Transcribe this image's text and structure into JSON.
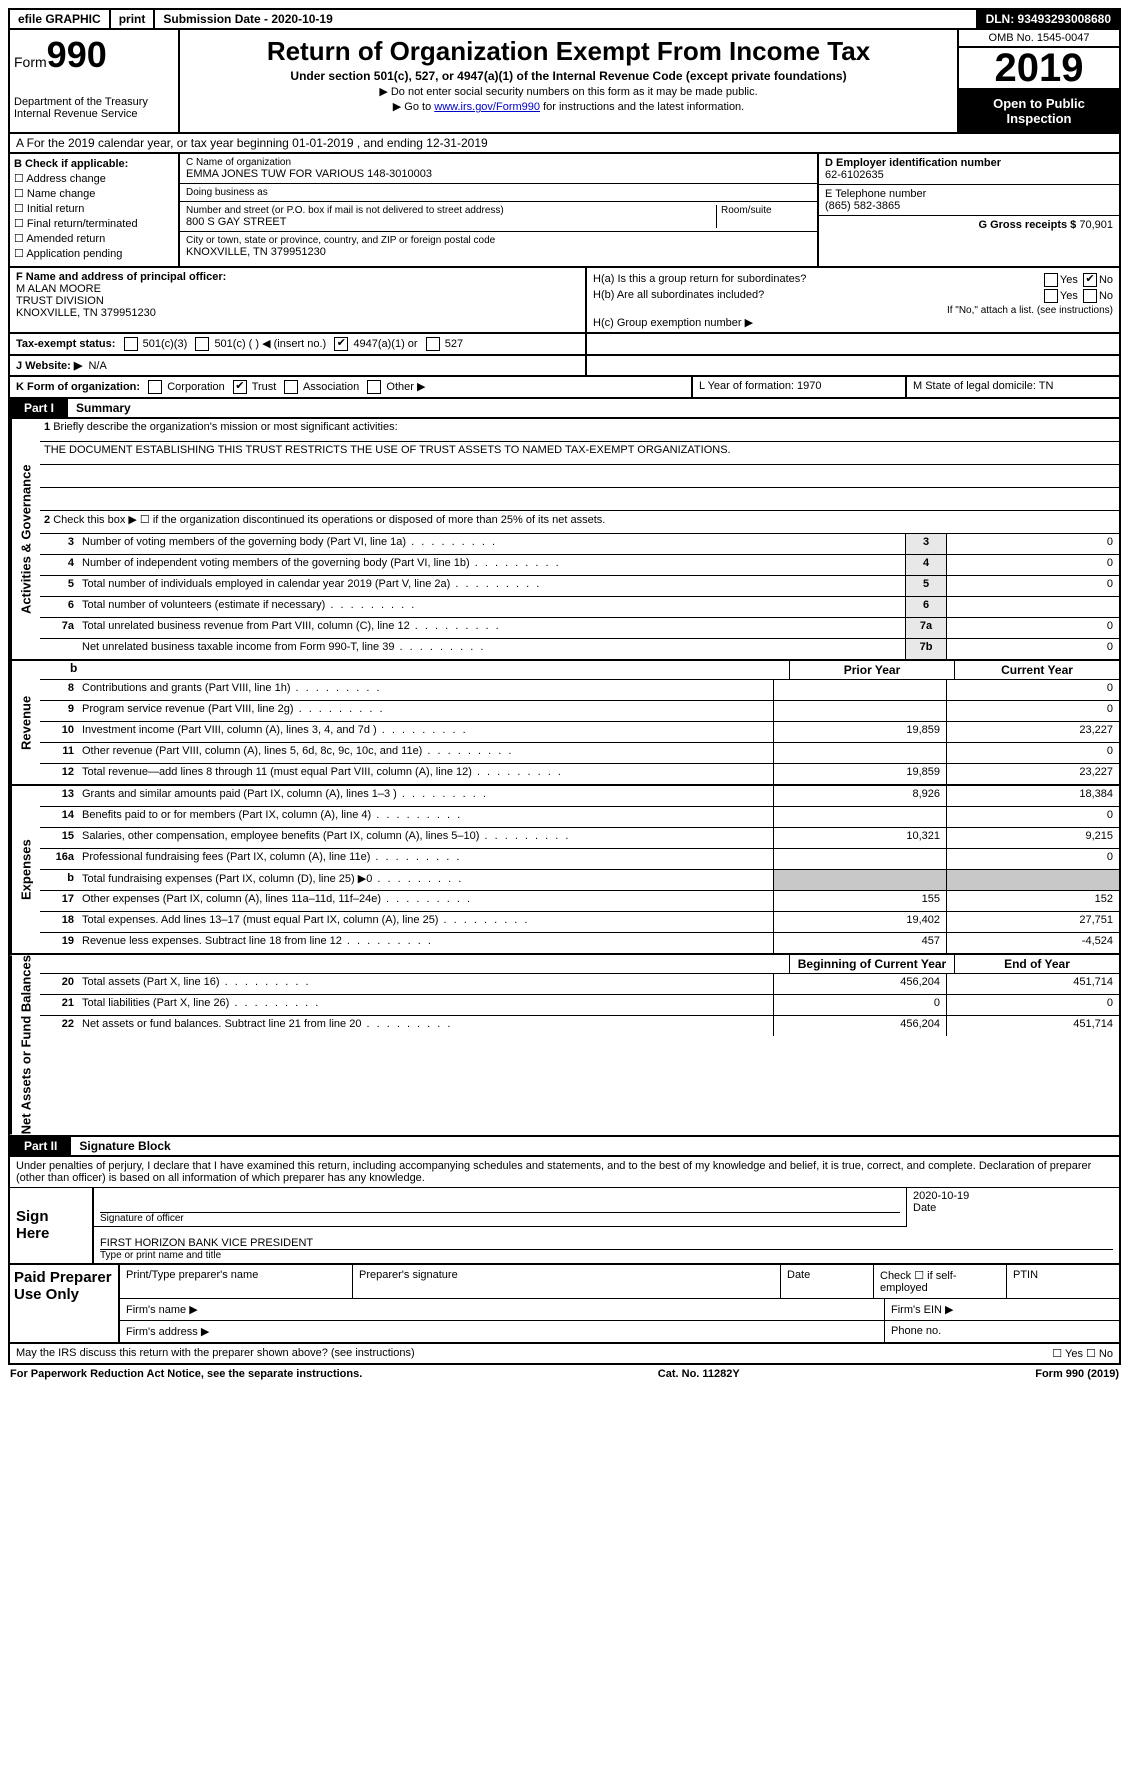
{
  "topbar": {
    "efile": "efile GRAPHIC",
    "print": "print",
    "subdate_label": "Submission Date - 2020-10-19",
    "dln": "DLN: 93493293008680"
  },
  "header": {
    "form_prefix": "Form",
    "form_number": "990",
    "dept": "Department of the Treasury\nInternal Revenue Service",
    "title": "Return of Organization Exempt From Income Tax",
    "sub": "Under section 501(c), 527, or 4947(a)(1) of the Internal Revenue Code (except private foundations)",
    "note1": "▶ Do not enter social security numbers on this form as it may be made public.",
    "note2_pre": "▶ Go to ",
    "note2_link": "www.irs.gov/Form990",
    "note2_post": " for instructions and the latest information.",
    "omb": "OMB No. 1545-0047",
    "year": "2019",
    "open": "Open to Public Inspection"
  },
  "row_a": "A For the 2019 calendar year, or tax year beginning 01-01-2019     , and ending 12-31-2019",
  "box_b": {
    "title": "B Check if applicable:",
    "items": [
      "Address change",
      "Name change",
      "Initial return",
      "Final return/terminated",
      "Amended return",
      "Application pending"
    ]
  },
  "box_c": {
    "name_label": "C Name of organization",
    "name": "EMMA JONES TUW FOR VARIOUS 148-3010003",
    "dba_label": "Doing business as",
    "dba": "",
    "addr_label": "Number and street (or P.O. box if mail is not delivered to street address)",
    "room_label": "Room/suite",
    "addr": "800 S GAY STREET",
    "city_label": "City or town, state or province, country, and ZIP or foreign postal code",
    "city": "KNOXVILLE, TN  379951230"
  },
  "box_d": {
    "label": "D Employer identification number",
    "val": "62-6102635"
  },
  "box_e": {
    "label": "E Telephone number",
    "val": "(865) 582-3865"
  },
  "box_g": {
    "label": "G Gross receipts $",
    "val": "70,901"
  },
  "box_f": {
    "label": "F  Name and address of principal officer:",
    "name": "M ALAN MOORE",
    "div": "TRUST DIVISION",
    "city": "KNOXVILLE, TN  379951230"
  },
  "box_h": {
    "a": "H(a)  Is this a group return for subordinates?",
    "b": "H(b)  Are all subordinates included?",
    "bnote": "If \"No,\" attach a list. (see instructions)",
    "c": "H(c)  Group exemption number ▶"
  },
  "box_i": {
    "label": "Tax-exempt status:",
    "opts": [
      "501(c)(3)",
      "501(c) (  ) ◀ (insert no.)",
      "4947(a)(1) or",
      "527"
    ]
  },
  "box_j": {
    "label": "J   Website: ▶",
    "val": "N/A"
  },
  "box_k": {
    "label": "K Form of organization:",
    "opts": [
      "Corporation",
      "Trust",
      "Association",
      "Other ▶"
    ],
    "l": "L Year of formation: 1970",
    "m": "M State of legal domicile: TN"
  },
  "part1": {
    "tab": "Part I",
    "title": "Summary"
  },
  "mission": {
    "num": "1",
    "label": "Briefly describe the organization's mission or most significant activities:",
    "text": "THE DOCUMENT ESTABLISHING THIS TRUST RESTRICTS THE USE OF TRUST ASSETS TO NAMED TAX-EXEMPT ORGANIZATIONS."
  },
  "gov": {
    "l2": "Check this box ▶ ☐  if the organization discontinued its operations or disposed of more than 25% of its net assets.",
    "rows": [
      {
        "n": "3",
        "d": "Number of voting members of the governing body (Part VI, line 1a)",
        "c": "3",
        "v": "0"
      },
      {
        "n": "4",
        "d": "Number of independent voting members of the governing body (Part VI, line 1b)",
        "c": "4",
        "v": "0"
      },
      {
        "n": "5",
        "d": "Total number of individuals employed in calendar year 2019 (Part V, line 2a)",
        "c": "5",
        "v": "0"
      },
      {
        "n": "6",
        "d": "Total number of volunteers (estimate if necessary)",
        "c": "6",
        "v": ""
      },
      {
        "n": "7a",
        "d": "Total unrelated business revenue from Part VIII, column (C), line 12",
        "c": "7a",
        "v": "0"
      },
      {
        "n": "",
        "d": "Net unrelated business taxable income from Form 990-T, line 39",
        "c": "7b",
        "v": "0"
      }
    ]
  },
  "colhdrs": {
    "prior": "Prior Year",
    "current": "Current Year"
  },
  "revenue": [
    {
      "n": "8",
      "d": "Contributions and grants (Part VIII, line 1h)",
      "p": "",
      "c": "0"
    },
    {
      "n": "9",
      "d": "Program service revenue (Part VIII, line 2g)",
      "p": "",
      "c": "0"
    },
    {
      "n": "10",
      "d": "Investment income (Part VIII, column (A), lines 3, 4, and 7d )",
      "p": "19,859",
      "c": "23,227"
    },
    {
      "n": "11",
      "d": "Other revenue (Part VIII, column (A), lines 5, 6d, 8c, 9c, 10c, and 11e)",
      "p": "",
      "c": "0"
    },
    {
      "n": "12",
      "d": "Total revenue—add lines 8 through 11 (must equal Part VIII, column (A), line 12)",
      "p": "19,859",
      "c": "23,227"
    }
  ],
  "expenses": [
    {
      "n": "13",
      "d": "Grants and similar amounts paid (Part IX, column (A), lines 1–3 )",
      "p": "8,926",
      "c": "18,384"
    },
    {
      "n": "14",
      "d": "Benefits paid to or for members (Part IX, column (A), line 4)",
      "p": "",
      "c": "0"
    },
    {
      "n": "15",
      "d": "Salaries, other compensation, employee benefits (Part IX, column (A), lines 5–10)",
      "p": "10,321",
      "c": "9,215"
    },
    {
      "n": "16a",
      "d": "Professional fundraising fees (Part IX, column (A), line 11e)",
      "p": "",
      "c": "0"
    },
    {
      "n": "b",
      "d": "Total fundraising expenses (Part IX, column (D), line 25) ▶0",
      "p": "grey",
      "c": "grey"
    },
    {
      "n": "17",
      "d": "Other expenses (Part IX, column (A), lines 11a–11d, 11f–24e)",
      "p": "155",
      "c": "152"
    },
    {
      "n": "18",
      "d": "Total expenses. Add lines 13–17 (must equal Part IX, column (A), line 25)",
      "p": "19,402",
      "c": "27,751"
    },
    {
      "n": "19",
      "d": "Revenue less expenses. Subtract line 18 from line 12",
      "p": "457",
      "c": "-4,524"
    }
  ],
  "colhdrs2": {
    "begin": "Beginning of Current Year",
    "end": "End of Year"
  },
  "netassets": [
    {
      "n": "20",
      "d": "Total assets (Part X, line 16)",
      "p": "456,204",
      "c": "451,714"
    },
    {
      "n": "21",
      "d": "Total liabilities (Part X, line 26)",
      "p": "0",
      "c": "0"
    },
    {
      "n": "22",
      "d": "Net assets or fund balances. Subtract line 21 from line 20",
      "p": "456,204",
      "c": "451,714"
    }
  ],
  "sidelabels": {
    "gov": "Activities & Governance",
    "rev": "Revenue",
    "exp": "Expenses",
    "net": "Net Assets or Fund Balances"
  },
  "part2": {
    "tab": "Part II",
    "title": "Signature Block"
  },
  "sig": {
    "note": "Under penalties of perjury, I declare that I have examined this return, including accompanying schedules and statements, and to the best of my knowledge and belief, it is true, correct, and complete. Declaration of preparer (other than officer) is based on all information of which preparer has any knowledge.",
    "sign_here": "Sign Here",
    "sig_label": "Signature of officer",
    "date": "2020-10-19",
    "date_label": "Date",
    "name": "FIRST HORIZON BANK VICE PRESIDENT",
    "name_label": "Type or print name and title"
  },
  "prep": {
    "title": "Paid Preparer Use Only",
    "h1": "Print/Type preparer's name",
    "h2": "Preparer's signature",
    "h3": "Date",
    "h4": "Check ☐ if self-employed",
    "h5": "PTIN",
    "firm_name": "Firm's name  ▶",
    "firm_ein": "Firm's EIN ▶",
    "firm_addr": "Firm's address ▶",
    "phone": "Phone no."
  },
  "footer": {
    "q": "May the IRS discuss this return with the preparer shown above? (see instructions)",
    "yn": "☐ Yes   ☐ No",
    "pra": "For Paperwork Reduction Act Notice, see the separate instructions.",
    "cat": "Cat. No. 11282Y",
    "form": "Form 990 (2019)"
  }
}
